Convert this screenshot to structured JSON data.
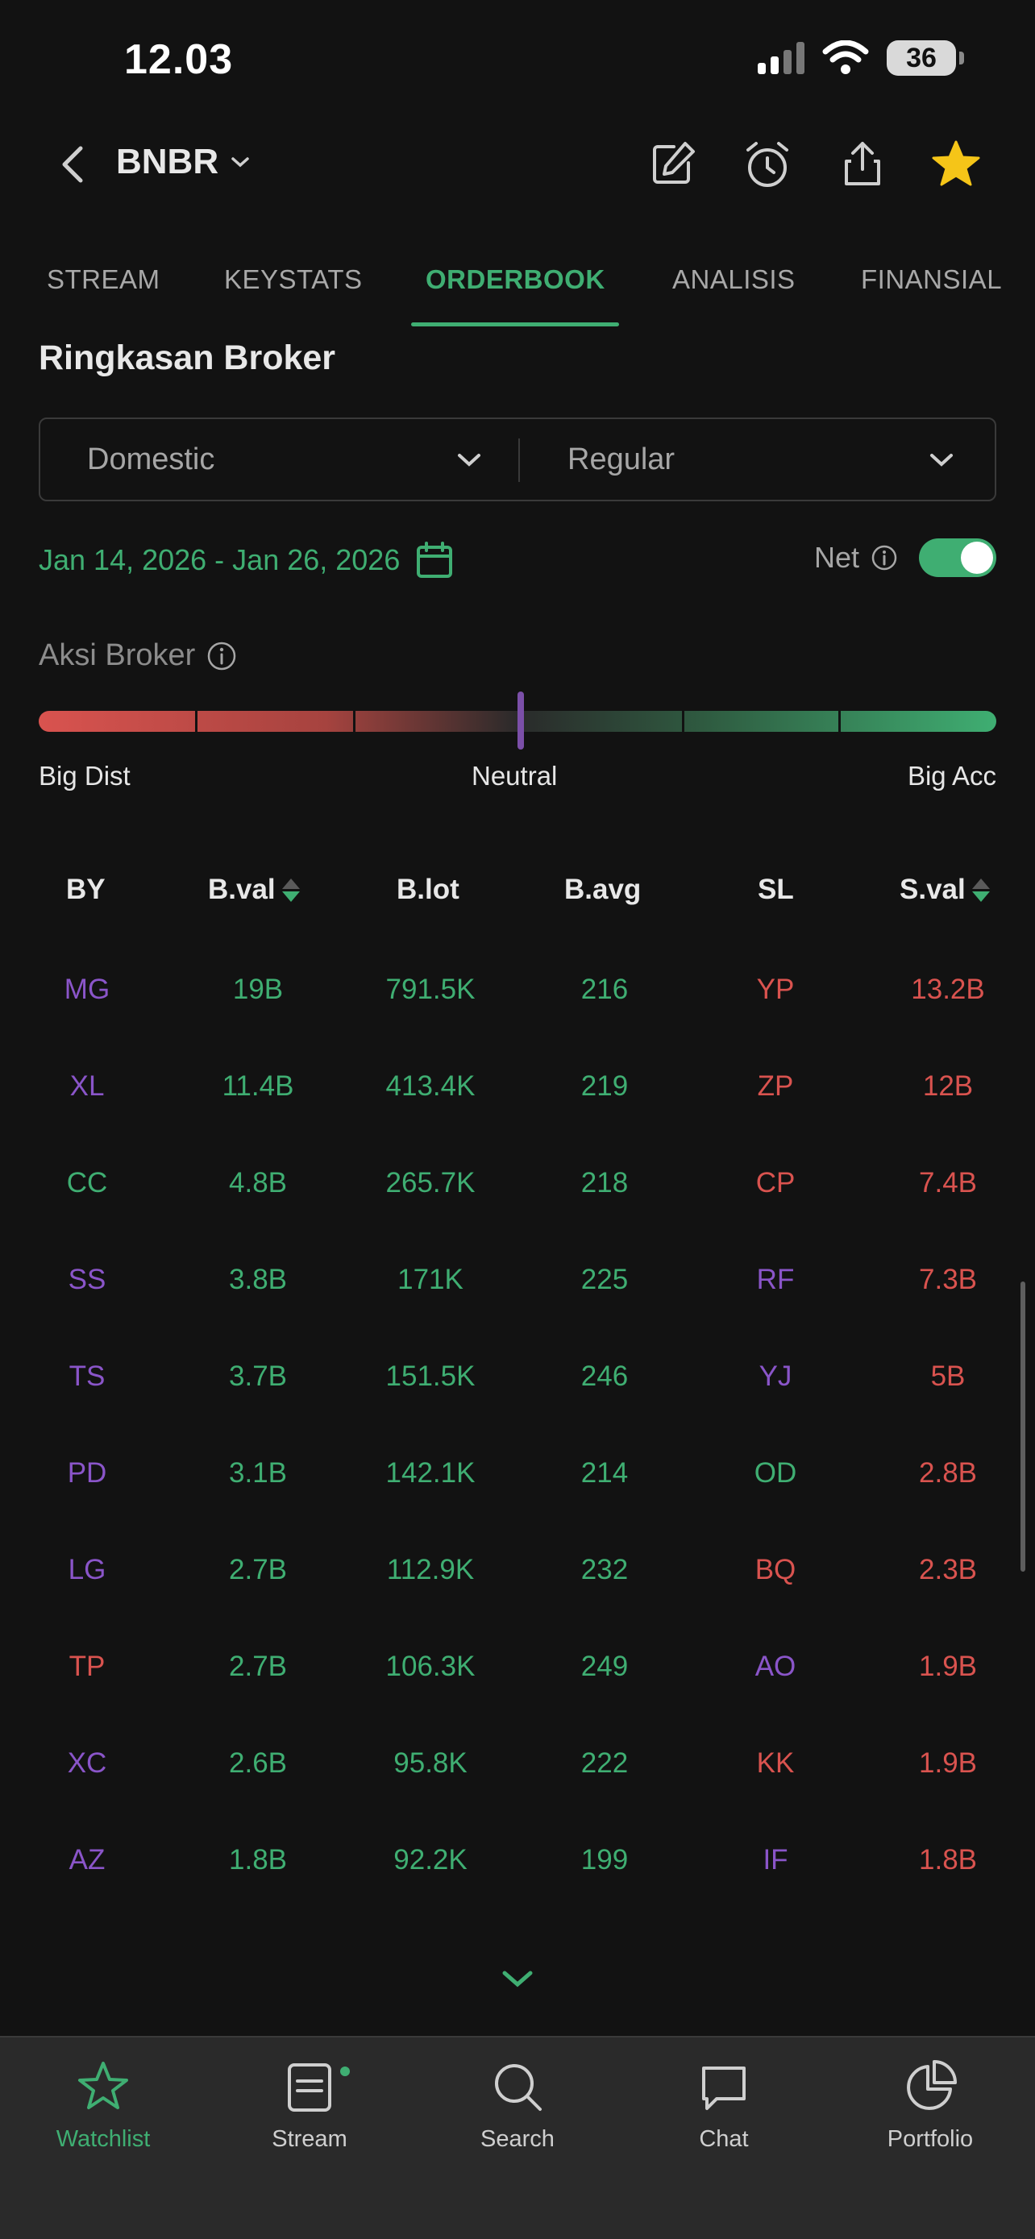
{
  "status_bar": {
    "time": "12.03",
    "battery": "36"
  },
  "header": {
    "ticker": "BNBR"
  },
  "tabs": [
    {
      "label": "STREAM",
      "active": false
    },
    {
      "label": "KEYSTATS",
      "active": false
    },
    {
      "label": "ORDERBOOK",
      "active": true
    },
    {
      "label": "ANALISIS",
      "active": false
    },
    {
      "label": "FINANSIAL",
      "active": false
    }
  ],
  "section": {
    "title": "Ringkasan Broker"
  },
  "filters": {
    "market": "Domestic",
    "board": "Regular"
  },
  "date_range": "Jan 14, 2026 - Jan 26, 2026",
  "net": {
    "label": "Net",
    "enabled": true
  },
  "aksi_broker": {
    "label": "Aksi Broker",
    "left_label": "Big Dist",
    "center_label": "Neutral",
    "right_label": "Big Acc"
  },
  "table": {
    "headers": {
      "by": "BY",
      "bval": "B.val",
      "blot": "B.lot",
      "bavg": "B.avg",
      "sl": "SL",
      "sval": "S.val"
    },
    "rows": [
      {
        "by": "MG",
        "by_color": "purple",
        "bval": "19B",
        "blot": "791.5K",
        "bavg": "216",
        "sl": "YP",
        "sl_color": "red",
        "sval": "13.2B"
      },
      {
        "by": "XL",
        "by_color": "purple",
        "bval": "11.4B",
        "blot": "413.4K",
        "bavg": "219",
        "sl": "ZP",
        "sl_color": "red",
        "sval": "12B"
      },
      {
        "by": "CC",
        "by_color": "green",
        "bval": "4.8B",
        "blot": "265.7K",
        "bavg": "218",
        "sl": "CP",
        "sl_color": "red",
        "sval": "7.4B"
      },
      {
        "by": "SS",
        "by_color": "purple",
        "bval": "3.8B",
        "blot": "171K",
        "bavg": "225",
        "sl": "RF",
        "sl_color": "purple",
        "sval": "7.3B"
      },
      {
        "by": "TS",
        "by_color": "purple",
        "bval": "3.7B",
        "blot": "151.5K",
        "bavg": "246",
        "sl": "YJ",
        "sl_color": "purple",
        "sval": "5B"
      },
      {
        "by": "PD",
        "by_color": "purple",
        "bval": "3.1B",
        "blot": "142.1K",
        "bavg": "214",
        "sl": "OD",
        "sl_color": "green",
        "sval": "2.8B"
      },
      {
        "by": "LG",
        "by_color": "purple",
        "bval": "2.7B",
        "blot": "112.9K",
        "bavg": "232",
        "sl": "BQ",
        "sl_color": "red",
        "sval": "2.3B"
      },
      {
        "by": "TP",
        "by_color": "red",
        "bval": "2.7B",
        "blot": "106.3K",
        "bavg": "249",
        "sl": "AO",
        "sl_color": "purple",
        "sval": "1.9B"
      },
      {
        "by": "XC",
        "by_color": "purple",
        "bval": "2.6B",
        "blot": "95.8K",
        "bavg": "222",
        "sl": "KK",
        "sl_color": "red",
        "sval": "1.9B"
      },
      {
        "by": "AZ",
        "by_color": "purple",
        "bval": "1.8B",
        "blot": "92.2K",
        "bavg": "199",
        "sl": "IF",
        "sl_color": "purple",
        "sval": "1.8B"
      }
    ]
  },
  "bottom_nav": [
    {
      "label": "Watchlist",
      "icon": "star-outline-icon",
      "active": true
    },
    {
      "label": "Stream",
      "icon": "document-icon",
      "active": false,
      "badge": true
    },
    {
      "label": "Search",
      "icon": "search-icon",
      "active": false
    },
    {
      "label": "Chat",
      "icon": "chat-icon",
      "active": false
    },
    {
      "label": "Portfolio",
      "icon": "pie-chart-icon",
      "active": false
    }
  ],
  "colors": {
    "accent": "#3fae72",
    "purple": "#8a55c9",
    "red": "#d9534f",
    "background": "#121212"
  }
}
